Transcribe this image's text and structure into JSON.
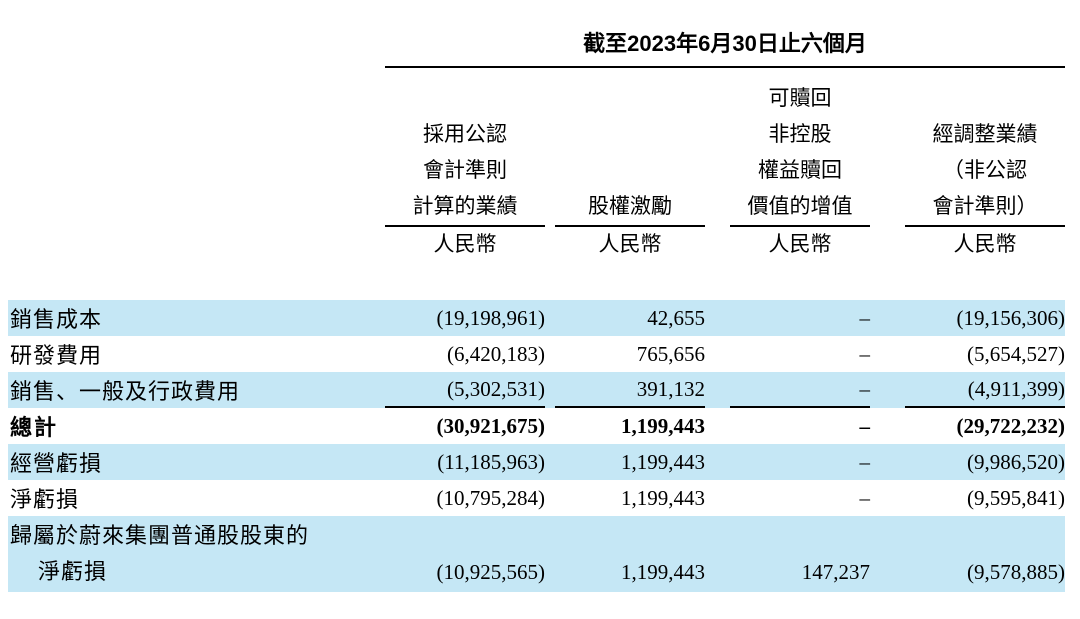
{
  "period_header": "截至2023年6月30日止六個月",
  "columns": [
    {
      "header_lines": [
        "採用公認",
        "會計準則",
        "計算的業績"
      ],
      "unit": "人民幣"
    },
    {
      "header_lines": [
        "股權激勵"
      ],
      "unit": "人民幣"
    },
    {
      "header_lines": [
        "可贖回",
        "非控股",
        "權益贖回",
        "價值的增值"
      ],
      "unit": "人民幣"
    },
    {
      "header_lines": [
        "經調整業績",
        "（非公認",
        "會計準則）"
      ],
      "unit": "人民幣"
    }
  ],
  "rows": [
    {
      "label": "銷售成本",
      "values": [
        "(19,198,961)",
        "42,655",
        "–",
        "(19,156,306)"
      ]
    },
    {
      "label": "研發費用",
      "values": [
        "(6,420,183)",
        "765,656",
        "–",
        "(5,654,527)"
      ]
    },
    {
      "label": "銷售、一般及行政費用",
      "values": [
        "(5,302,531)",
        "391,132",
        "–",
        "(4,911,399)"
      ]
    },
    {
      "label": "總計",
      "values": [
        "(30,921,675)",
        "1,199,443",
        "–",
        "(29,722,232)"
      ]
    },
    {
      "label": "經營虧損",
      "values": [
        "(11,185,963)",
        "1,199,443",
        "–",
        "(9,986,520)"
      ]
    },
    {
      "label": "淨虧損",
      "values": [
        "(10,795,284)",
        "1,199,443",
        "–",
        "(9,595,841)"
      ]
    },
    {
      "label": "歸屬於蔚來集團普通股股東的",
      "label_line2": "淨虧損",
      "values": [
        "(10,925,565)",
        "1,199,443",
        "147,237",
        "(9,578,885)"
      ]
    }
  ],
  "colors": {
    "highlight": "#c5e7f5",
    "rule": "#000000"
  }
}
